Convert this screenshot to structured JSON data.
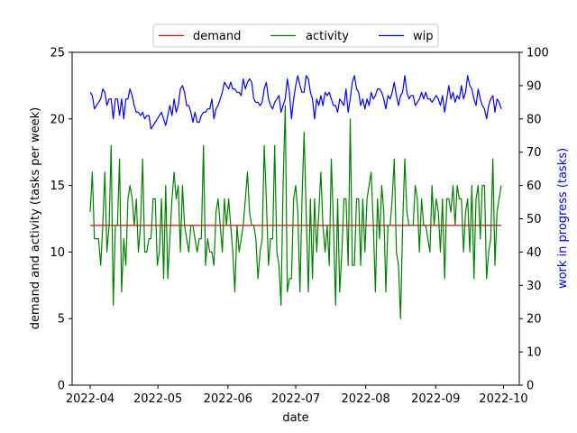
{
  "chart_data": {
    "type": "line",
    "xlabel": "date",
    "ylabel_left": "demand and activity (tasks per week)",
    "ylabel_right": "work in progress (tasks)",
    "x_start": "2022-04-01",
    "x_end": "2022-09-30",
    "xlim": [
      "2022-03-24",
      "2022-10-08"
    ],
    "x_ticks": [
      "2022-04",
      "2022-05",
      "2022-06",
      "2022-07",
      "2022-08",
      "2022-09",
      "2022-10"
    ],
    "ylim_left": [
      0,
      25
    ],
    "yticks_left": [
      0,
      5,
      10,
      15,
      20,
      25
    ],
    "ylim_right": [
      0,
      100
    ],
    "yticks_right": [
      0,
      10,
      20,
      30,
      40,
      50,
      60,
      70,
      80,
      90,
      100
    ],
    "grid": false,
    "legend_placement": "top-center",
    "series": [
      {
        "name": "demand",
        "axis": "left",
        "color": "#ff0000",
        "values": [
          12,
          12
        ]
      },
      {
        "name": "activity",
        "axis": "left",
        "color": "#008000",
        "values": [
          13,
          16,
          11,
          11,
          11,
          9,
          12,
          16,
          10,
          12,
          18,
          6,
          12,
          12,
          17,
          7,
          11,
          9,
          14,
          15,
          14,
          12,
          14,
          10,
          12,
          17,
          10,
          10,
          11,
          11,
          14,
          14,
          9,
          10,
          14,
          8,
          15,
          8,
          11,
          14,
          16,
          14,
          15,
          10,
          15,
          12,
          11,
          10,
          12,
          12,
          11,
          10,
          11,
          11,
          18,
          9,
          11,
          10,
          10,
          9,
          13,
          14,
          12,
          10,
          14,
          12,
          14,
          12,
          10,
          7,
          12,
          10,
          11,
          12,
          14,
          16,
          13,
          12,
          12,
          11,
          8,
          10,
          11,
          18,
          14,
          9,
          11,
          11,
          18,
          10,
          9,
          6,
          15,
          21,
          7,
          8,
          8,
          14,
          15,
          13,
          7,
          14,
          19,
          13,
          7,
          14,
          8,
          14,
          10,
          13,
          16,
          12,
          10,
          12,
          9,
          17,
          12,
          6,
          14,
          7,
          10,
          14,
          14,
          9,
          20,
          9,
          9,
          14,
          14,
          9,
          14,
          10,
          14,
          15,
          16,
          12,
          7,
          14,
          11,
          15,
          13,
          7,
          12,
          12,
          14,
          17,
          10,
          9,
          5,
          12,
          17,
          13,
          12,
          12,
          12,
          15,
          14,
          10,
          14,
          12,
          12,
          11,
          10,
          15,
          12,
          14,
          13,
          10,
          14,
          8,
          14,
          14,
          13,
          15,
          12,
          15,
          14,
          14,
          10,
          13,
          14,
          10,
          15,
          8,
          14,
          15,
          11,
          15,
          15,
          8,
          10,
          11,
          17,
          9,
          13,
          14,
          15
        ]
      },
      {
        "name": "wip",
        "axis": "right",
        "color": "#0000ff",
        "values": [
          88,
          87,
          83,
          84,
          85,
          86,
          89,
          88,
          84,
          86,
          86,
          80,
          86,
          86,
          81,
          86,
          80,
          86,
          86,
          89,
          87,
          84,
          82,
          82,
          81,
          82,
          80,
          81,
          81,
          77,
          78,
          79,
          80,
          81,
          82,
          80,
          78,
          81,
          84,
          81,
          86,
          82,
          84,
          89,
          90,
          88,
          84,
          84,
          82,
          79,
          82,
          79,
          79,
          81,
          82,
          82,
          83,
          83,
          86,
          80,
          83,
          84,
          86,
          88,
          91,
          90,
          89,
          91,
          89,
          89,
          88,
          88,
          87,
          92,
          89,
          91,
          92,
          91,
          86,
          85,
          85,
          84,
          85,
          89,
          91,
          86,
          84,
          83,
          85,
          86,
          87,
          82,
          84,
          86,
          92,
          88,
          80,
          86,
          90,
          93,
          90,
          88,
          88,
          93,
          92,
          88,
          86,
          80,
          86,
          84,
          87,
          84,
          88,
          87,
          88,
          86,
          84,
          84,
          82,
          86,
          85,
          84,
          89,
          82,
          86,
          91,
          93,
          89,
          88,
          84,
          86,
          83,
          86,
          84,
          88,
          86,
          87,
          89,
          89,
          88,
          86,
          83,
          87,
          86,
          88,
          91,
          87,
          84,
          87,
          88,
          93,
          88,
          86,
          87,
          87,
          84,
          85,
          86,
          88,
          86,
          88,
          86,
          86,
          85,
          86,
          87,
          86,
          84,
          87,
          82,
          86,
          90,
          86,
          88,
          85,
          87,
          86,
          90,
          86,
          88,
          93,
          90,
          89,
          86,
          84,
          89,
          86,
          84,
          83,
          80,
          84,
          86,
          87,
          82,
          86,
          85,
          83
        ]
      }
    ]
  }
}
